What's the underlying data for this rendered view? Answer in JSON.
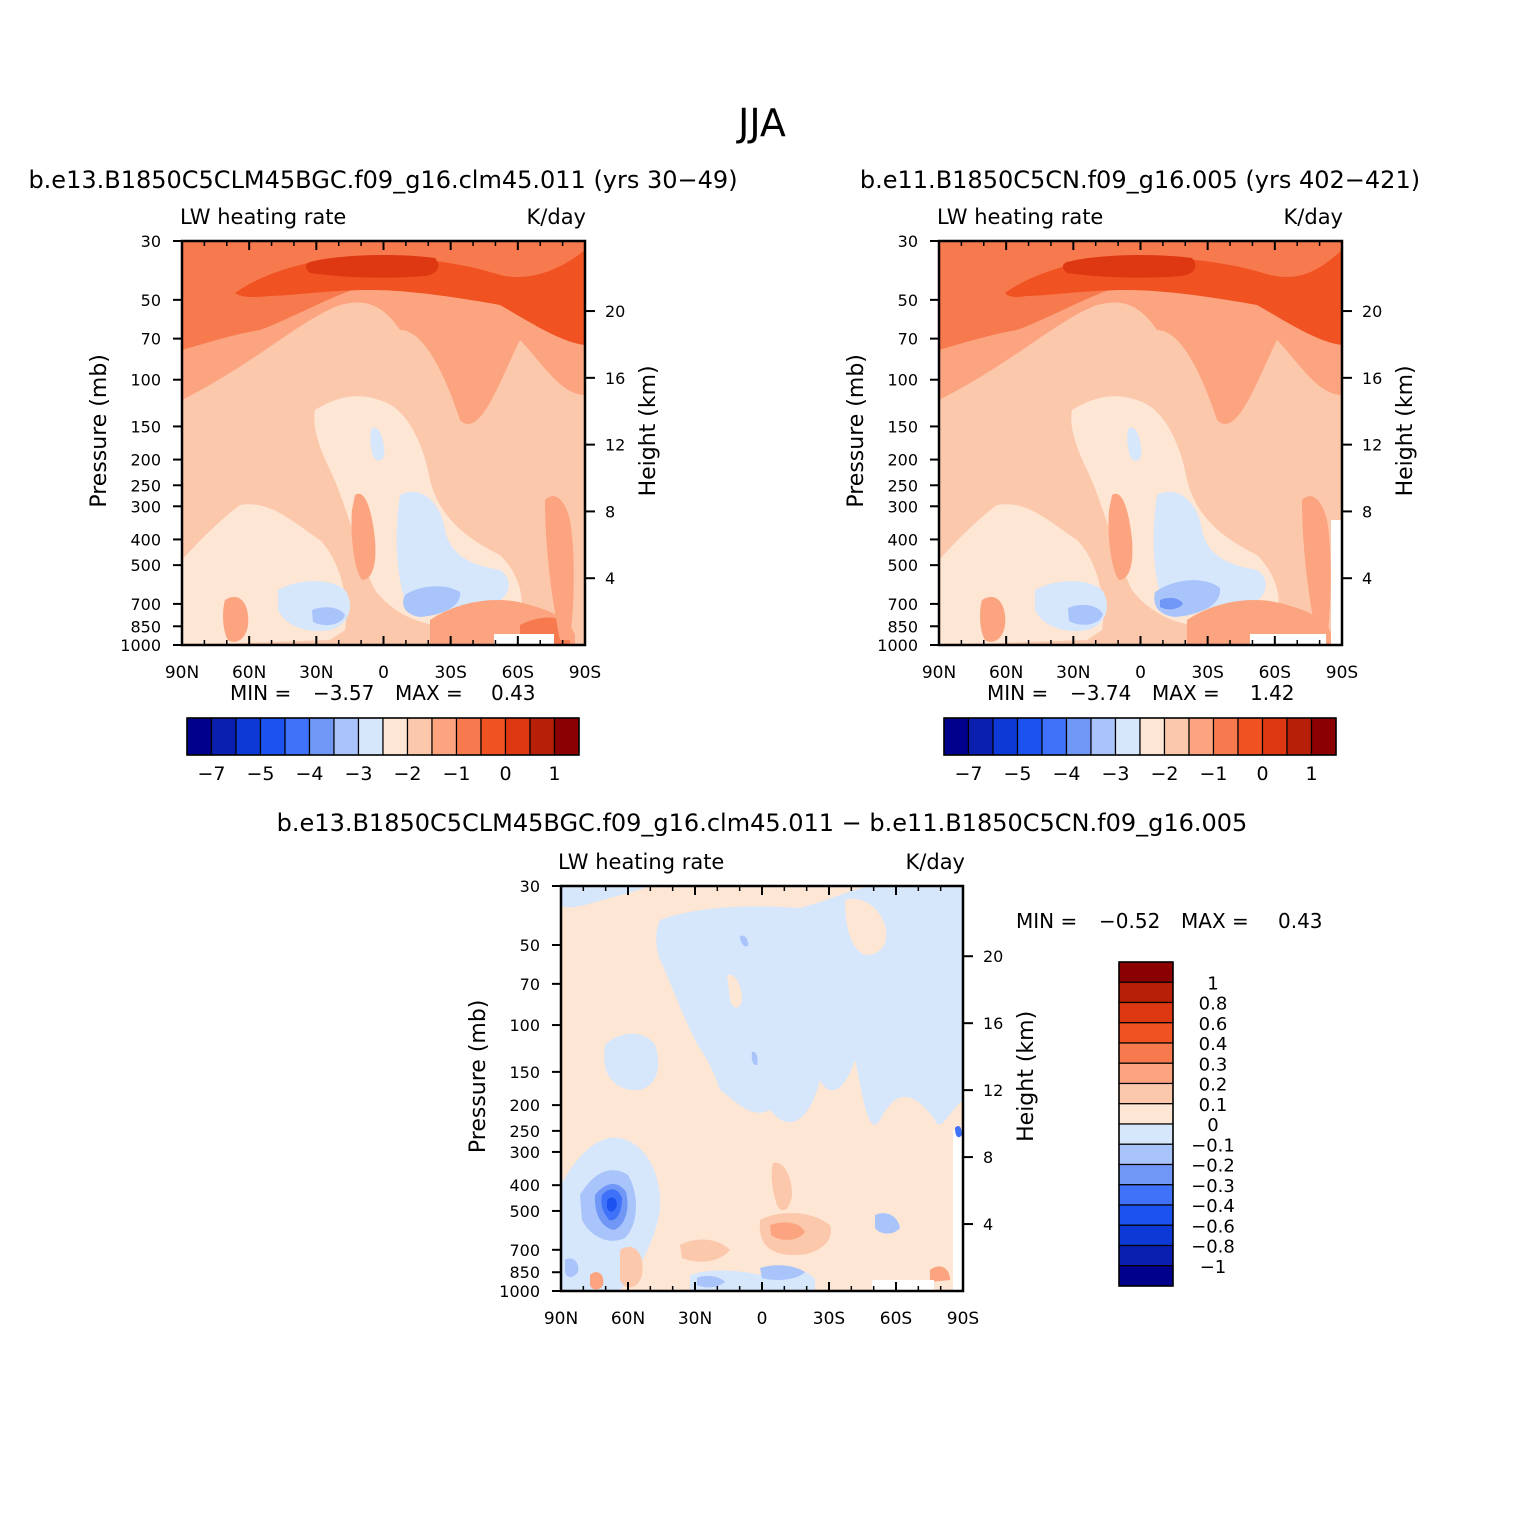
{
  "season": "JJA",
  "colors": {
    "diverging": [
      "#00008c",
      "#0a1fb0",
      "#0d3ad6",
      "#1c52f0",
      "#3f72f8",
      "#7097f5",
      "#a9c4fb",
      "#d6e6fb",
      "#fde6d4",
      "#fcc8ac",
      "#fba47f",
      "#f77a4e",
      "#f05222",
      "#dd3812",
      "#b71f08",
      "#8b0000"
    ]
  },
  "chart_data": [
    {
      "type": "contour",
      "title": "b.e13.B1850C5CLM45BGC.f09_g16.clm45.011 (yrs 30-49)",
      "title_display": "b.e13.B1850C5CLM45BGC.f09_g16.clm45.011  (yrs  30−49)",
      "left_label": "LW  heating  rate",
      "right_label": "K/day",
      "ylabel": "Pressure  (mb)",
      "y2label": "Height  (km)",
      "x_ticks": [
        "90N",
        "60N",
        "30N",
        "0",
        "30S",
        "60S",
        "90S"
      ],
      "y_ticks": [
        "30",
        "50",
        "70",
        "100",
        "150",
        "200",
        "250",
        "300",
        "400",
        "500",
        "700",
        "850",
        "1000"
      ],
      "y2_ticks": [
        "20",
        "16",
        "12",
        "8",
        "4"
      ],
      "min_label": "MIN  =",
      "min_value": "−3.57",
      "max_label": "MAX  =",
      "max_value": "0.43",
      "colorbar_levels": [
        "−7",
        "−5",
        "−4",
        "−3",
        "−2",
        "−1",
        "0",
        "1"
      ]
    },
    {
      "type": "contour",
      "title": "b.e11.B1850C5CN.f09_g16.005 (yrs 402-421)",
      "title_display": "b.e11.B1850C5CN.f09_g16.005  (yrs  402−421)",
      "left_label": "LW  heating  rate",
      "right_label": "K/day",
      "ylabel": "Pressure  (mb)",
      "y2label": "Height  (km)",
      "x_ticks": [
        "90N",
        "60N",
        "30N",
        "0",
        "30S",
        "60S",
        "90S"
      ],
      "y_ticks": [
        "30",
        "50",
        "70",
        "100",
        "150",
        "200",
        "250",
        "300",
        "400",
        "500",
        "700",
        "850",
        "1000"
      ],
      "y2_ticks": [
        "20",
        "16",
        "12",
        "8",
        "4"
      ],
      "min_label": "MIN  =",
      "min_value": "−3.74",
      "max_label": "MAX  =",
      "max_value": "1.42",
      "colorbar_levels": [
        "−7",
        "−5",
        "−4",
        "−3",
        "−2",
        "−1",
        "0",
        "1"
      ]
    },
    {
      "type": "contour",
      "title": "b.e13.B1850C5CLM45BGC.f09_g16.clm45.011 - b.e11.B1850C5CN.f09_g16.005",
      "title_display": "b.e13.B1850C5CLM45BGC.f09_g16.clm45.011  −  b.e11.B1850C5CN.f09_g16.005",
      "left_label": "LW  heating  rate",
      "right_label": "K/day",
      "ylabel": "Pressure  (mb)",
      "y2label": "Height  (km)",
      "x_ticks": [
        "90N",
        "60N",
        "30N",
        "0",
        "30S",
        "60S",
        "90S"
      ],
      "y_ticks": [
        "30",
        "50",
        "70",
        "100",
        "150",
        "200",
        "250",
        "300",
        "400",
        "500",
        "700",
        "850",
        "1000"
      ],
      "y2_ticks": [
        "20",
        "16",
        "12",
        "8",
        "4"
      ],
      "min_label": "MIN  =",
      "min_value": "−0.52",
      "max_label": "MAX  =",
      "max_value": "0.43",
      "colorbar_levels": [
        "1",
        "0.8",
        "0.6",
        "0.4",
        "0.3",
        "0.2",
        "0.1",
        "0",
        "−0.1",
        "−0.2",
        "−0.3",
        "−0.4",
        "−0.6",
        "−0.8",
        "−1"
      ]
    }
  ]
}
